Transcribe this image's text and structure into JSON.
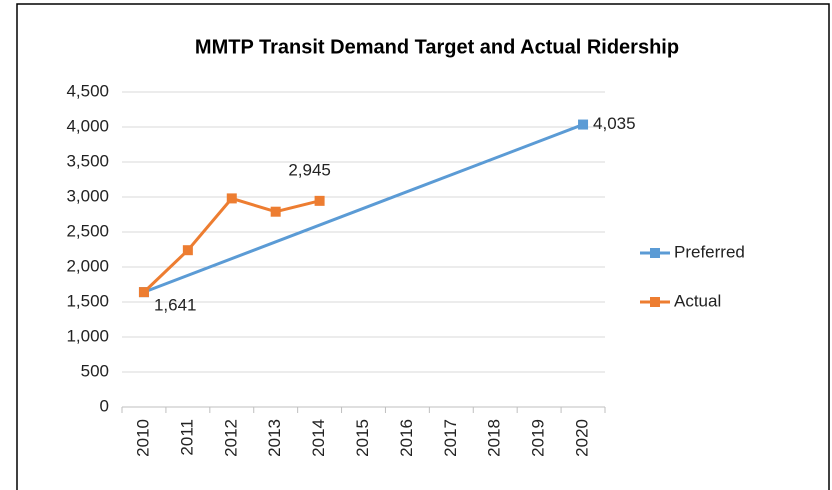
{
  "chart_data": {
    "type": "line",
    "title": "MMTP Transit Demand Target and Actual Ridership",
    "categories": [
      "2010",
      "2011",
      "2012",
      "2013",
      "2014",
      "2015",
      "2016",
      "2017",
      "2018",
      "2019",
      "2020"
    ],
    "series": [
      {
        "name": "Preferred",
        "color": "#5b9bd5",
        "values": [
          1641,
          null,
          null,
          null,
          null,
          null,
          null,
          null,
          null,
          null,
          4035
        ],
        "value_labels": [
          "1,641",
          null,
          null,
          null,
          null,
          null,
          null,
          null,
          null,
          null,
          "4,035"
        ]
      },
      {
        "name": "Actual",
        "color": "#ed7d31",
        "values": [
          1641,
          2240,
          2980,
          2790,
          2945,
          null,
          null,
          null,
          null,
          null,
          null
        ],
        "value_labels": [
          null,
          null,
          null,
          null,
          "2,945",
          null,
          null,
          null,
          null,
          null,
          null
        ]
      }
    ],
    "connect_gaps": true,
    "ylim": [
      0,
      4500
    ],
    "yticks": [
      0,
      500,
      {
        "value": 1000,
        "label": "1,000"
      },
      {
        "value": 1500,
        "label": "1,500"
      },
      {
        "value": 2000,
        "label": "2,000"
      },
      {
        "value": 2500,
        "label": "2,500"
      },
      {
        "value": 3000,
        "label": "3,000"
      },
      {
        "value": 3500,
        "label": "3,500"
      },
      {
        "value": 4000,
        "label": "4,000"
      },
      {
        "value": 4500,
        "label": "4,500"
      }
    ],
    "grid": true,
    "legend": "right"
  }
}
